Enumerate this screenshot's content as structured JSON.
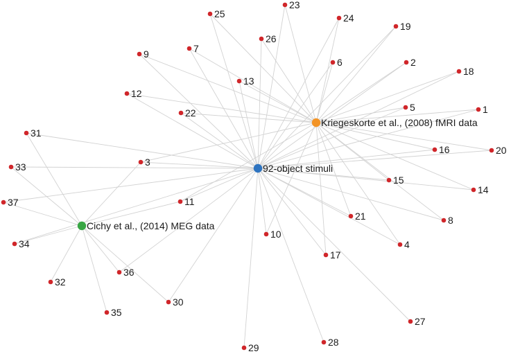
{
  "colors": {
    "edge": "#d2d2d2",
    "leaf": "#d0262a",
    "hub_stimuli": "#2e74c0",
    "hub_fmri": "#f39426",
    "hub_meg": "#38a644"
  },
  "hubs": [
    {
      "id": "stimuli",
      "label": "92-object stimuli"
    },
    {
      "id": "fmri",
      "label": "Kriegeskorte et al., (2008) fMRI data"
    },
    {
      "id": "meg",
      "label": "Cichy et al., (2014) MEG data"
    }
  ],
  "nodes": [
    {
      "id": "1",
      "label": "1",
      "links": [
        "stimuli",
        "fmri"
      ]
    },
    {
      "id": "2",
      "label": "2",
      "links": [
        "stimuli",
        "fmri"
      ]
    },
    {
      "id": "3",
      "label": "3",
      "links": [
        "stimuli",
        "fmri",
        "meg"
      ]
    },
    {
      "id": "4",
      "label": "4",
      "links": [
        "stimuli",
        "fmri"
      ]
    },
    {
      "id": "5",
      "label": "5",
      "links": [
        "stimuli",
        "fmri"
      ]
    },
    {
      "id": "6",
      "label": "6",
      "links": [
        "stimuli",
        "fmri"
      ]
    },
    {
      "id": "7",
      "label": "7",
      "links": [
        "stimuli",
        "fmri"
      ]
    },
    {
      "id": "8",
      "label": "8",
      "links": [
        "stimuli",
        "fmri"
      ]
    },
    {
      "id": "9",
      "label": "9",
      "links": [
        "stimuli",
        "fmri"
      ]
    },
    {
      "id": "10",
      "label": "10",
      "links": [
        "stimuli",
        "fmri"
      ]
    },
    {
      "id": "11",
      "label": "11",
      "links": [
        "stimuli",
        "fmri",
        "meg"
      ]
    },
    {
      "id": "12",
      "label": "12",
      "links": [
        "stimuli",
        "fmri"
      ]
    },
    {
      "id": "13",
      "label": "13",
      "links": [
        "stimuli",
        "fmri"
      ]
    },
    {
      "id": "14",
      "label": "14",
      "links": [
        "stimuli",
        "fmri"
      ]
    },
    {
      "id": "15",
      "label": "15",
      "links": [
        "stimuli",
        "fmri"
      ]
    },
    {
      "id": "16",
      "label": "16",
      "links": [
        "stimuli",
        "fmri"
      ]
    },
    {
      "id": "17",
      "label": "17",
      "links": [
        "stimuli",
        "fmri"
      ]
    },
    {
      "id": "18",
      "label": "18",
      "links": [
        "stimuli",
        "fmri"
      ]
    },
    {
      "id": "19",
      "label": "19",
      "links": [
        "stimuli",
        "fmri"
      ]
    },
    {
      "id": "20",
      "label": "20",
      "links": [
        "stimuli",
        "fmri"
      ]
    },
    {
      "id": "21",
      "label": "21",
      "links": [
        "stimuli",
        "fmri"
      ]
    },
    {
      "id": "22",
      "label": "22",
      "links": [
        "stimuli",
        "fmri"
      ]
    },
    {
      "id": "23",
      "label": "23",
      "links": [
        "stimuli",
        "fmri"
      ]
    },
    {
      "id": "24",
      "label": "24",
      "links": [
        "stimuli",
        "fmri"
      ]
    },
    {
      "id": "25",
      "label": "25",
      "links": [
        "stimuli",
        "fmri"
      ]
    },
    {
      "id": "26",
      "label": "26",
      "links": [
        "stimuli",
        "fmri"
      ]
    },
    {
      "id": "27",
      "label": "27",
      "links": [
        "stimuli"
      ]
    },
    {
      "id": "28",
      "label": "28",
      "links": [
        "stimuli"
      ]
    },
    {
      "id": "29",
      "label": "29",
      "links": [
        "stimuli"
      ]
    },
    {
      "id": "30",
      "label": "30",
      "links": [
        "stimuli",
        "meg"
      ]
    },
    {
      "id": "31",
      "label": "31",
      "links": [
        "stimuli",
        "meg"
      ]
    },
    {
      "id": "32",
      "label": "32",
      "links": [
        "meg"
      ]
    },
    {
      "id": "33",
      "label": "33",
      "links": [
        "stimuli",
        "meg"
      ]
    },
    {
      "id": "34",
      "label": "34",
      "links": [
        "stimuli",
        "meg"
      ]
    },
    {
      "id": "35",
      "label": "35",
      "links": [
        "meg"
      ]
    },
    {
      "id": "36",
      "label": "36",
      "links": [
        "stimuli",
        "meg"
      ]
    },
    {
      "id": "37",
      "label": "37",
      "links": [
        "stimuli",
        "meg"
      ]
    }
  ]
}
